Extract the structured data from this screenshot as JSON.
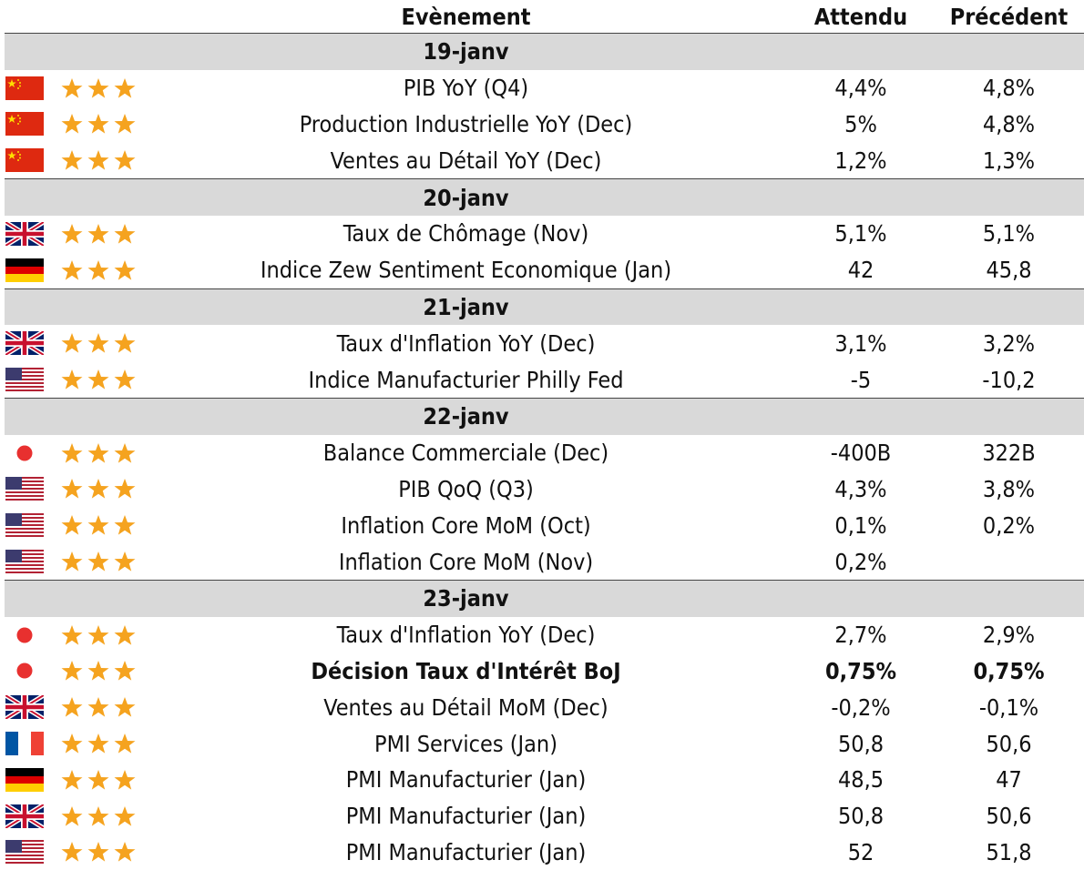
{
  "header": {
    "event": "Evènement",
    "expected": "Attendu",
    "previous": "Précédent"
  },
  "groups": [
    {
      "date": "19-janv",
      "rows": [
        {
          "event": "PIB YoY (Q4)",
          "expected": "4,4%",
          "previous": "4,8%"
        },
        {
          "event": "Production Industrielle YoY (Dec)",
          "expected": "5%",
          "previous": "4,8%"
        },
        {
          "event": "Ventes au Détail YoY (Dec)",
          "expected": "1,2%",
          "previous": "1,3%"
        }
      ]
    },
    {
      "date": "20-janv",
      "rows": [
        {
          "event": "Taux de Chômage (Nov)",
          "expected": "5,1%",
          "previous": "5,1%"
        },
        {
          "event": "Indice Zew Sentiment Economique (Jan)",
          "expected": "42",
          "previous": "45,8"
        }
      ]
    },
    {
      "date": "21-janv",
      "rows": [
        {
          "event": "Taux d'Inflation YoY (Dec)",
          "expected": "3,1%",
          "previous": "3,2%"
        },
        {
          "event": "Indice Manufacturier Philly Fed",
          "expected": "-5",
          "previous": "-10,2"
        }
      ]
    },
    {
      "date": "22-janv",
      "rows": [
        {
          "event": "Balance Commerciale (Dec)",
          "expected": "-400B",
          "previous": "322B"
        },
        {
          "event": "PIB QoQ (Q3)",
          "expected": "4,3%",
          "previous": "3,8%"
        },
        {
          "event": "Inflation Core MoM (Oct)",
          "expected": "0,1%",
          "previous": "0,2%"
        },
        {
          "event": "Inflation Core MoM (Nov)",
          "expected": "0,2%"
        }
      ]
    },
    {
      "date": "23-janv",
      "rows": [
        {
          "event": "Taux d'Inflation YoY (Dec)",
          "expected": "2,7%",
          "previous": "2,9%"
        },
        {
          "event": "Décision Taux d'Intérêt BoJ",
          "expected": "0,75%",
          "previous": "0,75%"
        },
        {
          "event": "Ventes au Détail MoM (Dec)",
          "expected": "-0,2%",
          "previous": "-0,1%"
        },
        {
          "event": "PMI Services (Jan)",
          "expected": "50,8",
          "previous": "50,6"
        },
        {
          "event": "PMI Manufacturier (Jan)",
          "expected": "48,5",
          "previous": "47"
        },
        {
          "event": "PMI Manufacturier (Jan)",
          "expected": "50,8",
          "previous": "50,6"
        },
        {
          "event": "PMI Manufacturier (Jan)",
          "expected": "52",
          "previous": "51,8"
        }
      ]
    }
  ]
}
